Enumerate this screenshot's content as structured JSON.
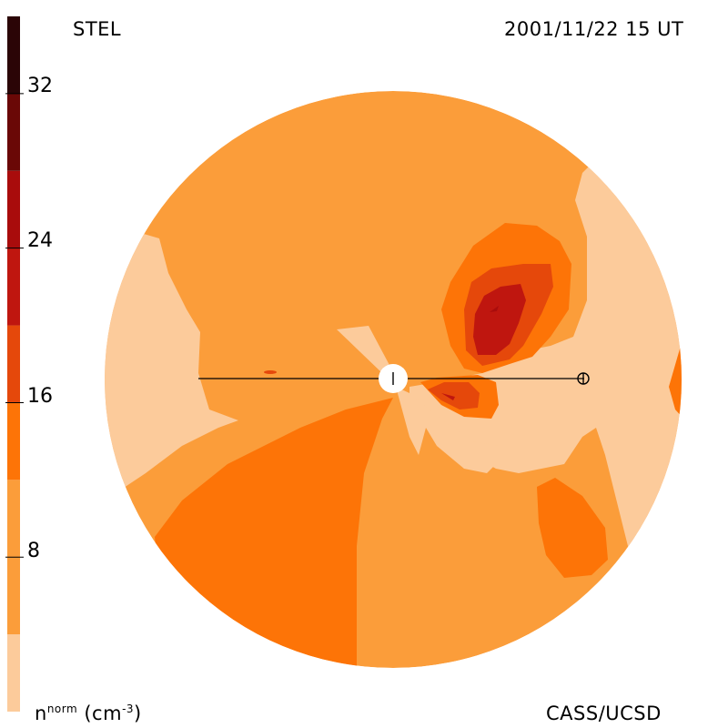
{
  "header": {
    "source": "STEL",
    "datetime": "2001/11/22 15 UT"
  },
  "footer": {
    "credit": "CASS/UCSD"
  },
  "colorbar": {
    "unit_base": "n",
    "unit_sup": "norm",
    "unit_rest": "(cm",
    "unit_exp": "-3",
    "unit_close": ")",
    "ticks": [
      "32",
      "24",
      "16",
      "8"
    ],
    "tick_values": [
      32,
      24,
      16,
      8
    ],
    "range": [
      0,
      36
    ],
    "bands": [
      {
        "from": 0,
        "to": 4,
        "color": "#fccb9b"
      },
      {
        "from": 4,
        "to": 12,
        "color": "#fb9d3a"
      },
      {
        "from": 12,
        "to": 16,
        "color": "#fd7407"
      },
      {
        "from": 16,
        "to": 20,
        "color": "#e5480b"
      },
      {
        "from": 20,
        "to": 24,
        "color": "#bf160f"
      },
      {
        "from": 24,
        "to": 28,
        "color": "#a90c0c"
      },
      {
        "from": 28,
        "to": 32,
        "color": "#6a0806"
      },
      {
        "from": 32,
        "to": 36,
        "color": "#2b0506"
      }
    ]
  },
  "colors": {
    "lightest": "#fccb9b",
    "light": "#fb9d3a",
    "medium": "#fd7407",
    "dark_orange": "#e5480b",
    "red": "#bf160f"
  },
  "icons": {
    "sun": "sun-icon",
    "earth": "earth-icon"
  }
}
